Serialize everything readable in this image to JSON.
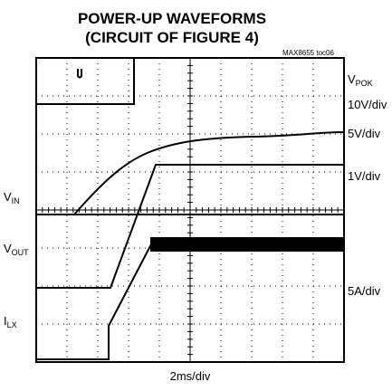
{
  "title": "POWER-UP WAVEFORMS",
  "subtitle": "(CIRCUIT OF FIGURE 4)",
  "code": "MAX8655 toc06",
  "trace_labels": [
    {
      "name": "V",
      "sub": "IN"
    },
    {
      "name": "V",
      "sub": "OUT"
    },
    {
      "name": "I",
      "sub": "LX"
    }
  ],
  "right_labels": [
    {
      "name": "V",
      "sub": "POK"
    },
    {
      "text": "10V/div"
    },
    {
      "text": "5V/div"
    },
    {
      "text": "1V/div"
    },
    {
      "text": "5A/div"
    }
  ],
  "x_label": "2ms/div"
}
